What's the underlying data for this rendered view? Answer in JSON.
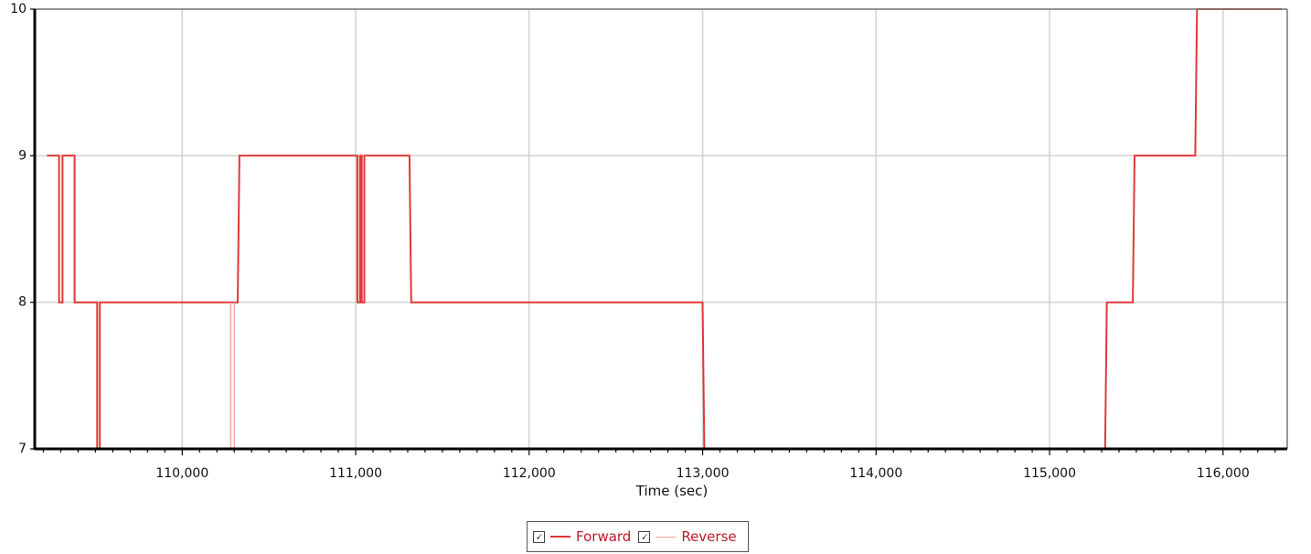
{
  "chart_data": {
    "type": "line",
    "title": "",
    "xlabel": "Time (sec)",
    "ylabel": "",
    "xlim": [
      109150,
      116370
    ],
    "ylim": [
      7,
      10
    ],
    "x_ticks": [
      110000,
      111000,
      112000,
      113000,
      114000,
      115000,
      116000
    ],
    "x_tick_labels": [
      "110,000",
      "111,000",
      "112,000",
      "113,000",
      "114,000",
      "115,000",
      "116,000"
    ],
    "y_ticks": [
      7,
      8,
      9,
      10
    ],
    "y_tick_labels": [
      "7",
      "8",
      "9",
      "10"
    ],
    "grid": true,
    "legend_position": "bottom-center",
    "series": [
      {
        "name": "Forward",
        "color": "#e03838",
        "points": [
          [
            109220,
            9
          ],
          [
            109290,
            9
          ],
          [
            109290,
            8
          ],
          [
            109310,
            8
          ],
          [
            109310,
            9
          ],
          [
            109380,
            9
          ],
          [
            109380,
            8
          ],
          [
            109510,
            8
          ],
          [
            109510,
            7
          ],
          [
            109525,
            7
          ],
          [
            109525,
            8
          ],
          [
            110320,
            8
          ],
          [
            110330,
            9
          ],
          [
            111010,
            9
          ],
          [
            111010,
            8
          ],
          [
            111025,
            8
          ],
          [
            111025,
            9
          ],
          [
            111035,
            9
          ],
          [
            111035,
            8
          ],
          [
            111050,
            8
          ],
          [
            111050,
            9
          ],
          [
            111310,
            9
          ],
          [
            111320,
            8
          ],
          [
            113000,
            8
          ],
          [
            113010,
            7
          ],
          [
            115320,
            7
          ],
          [
            115330,
            8
          ],
          [
            115480,
            8
          ],
          [
            115490,
            9
          ],
          [
            115840,
            9
          ],
          [
            115850,
            10
          ],
          [
            116340,
            10
          ]
        ]
      },
      {
        "name": "Reverse",
        "color": "#f2a0a0",
        "points": [
          [
            110280,
            8
          ],
          [
            110280,
            7
          ],
          [
            110300,
            7
          ],
          [
            110300,
            8
          ]
        ]
      }
    ]
  },
  "legend": {
    "items": [
      {
        "label": "Forward",
        "checked": "🗸",
        "color": "#e03838"
      },
      {
        "label": "Reverse",
        "checked": "🗸",
        "color": "#f2a0a0"
      }
    ],
    "text_color": "#c0182a"
  }
}
